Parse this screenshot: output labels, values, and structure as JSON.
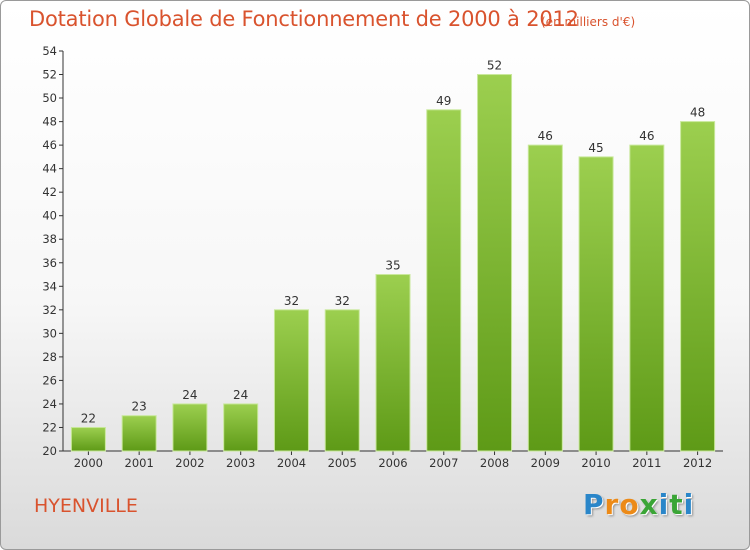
{
  "header": {
    "title": "Dotation Globale de Fonctionnement de 2000 à 2012",
    "subtitle": "(en milliers d'€)"
  },
  "footer": {
    "place": "HYENVILLE",
    "logo": [
      "P",
      "r",
      "o",
      "x",
      "i",
      "t",
      "i"
    ]
  },
  "colors": {
    "title": "#d9532e",
    "bar_top": "#9ccf4f",
    "bar_bottom": "#5e9a17",
    "bar_edge": "#c8e89a",
    "logo": [
      "#2a86c9",
      "#ec8a17",
      "#ec8a17",
      "#3aa536",
      "#2a86c9",
      "#3aa536",
      "#2a86c9"
    ]
  },
  "chart_data": {
    "type": "bar",
    "categories": [
      "2000",
      "2001",
      "2002",
      "2003",
      "2004",
      "2005",
      "2006",
      "2007",
      "2008",
      "2009",
      "2010",
      "2011",
      "2012"
    ],
    "values": [
      22,
      23,
      24,
      24,
      32,
      32,
      35,
      49,
      52,
      46,
      45,
      46,
      48
    ],
    "ylim": [
      20,
      54
    ],
    "yticks": [
      20,
      22,
      24,
      26,
      28,
      30,
      32,
      34,
      36,
      38,
      40,
      42,
      44,
      46,
      48,
      50,
      52,
      54
    ],
    "grid": false,
    "legend": "none"
  }
}
